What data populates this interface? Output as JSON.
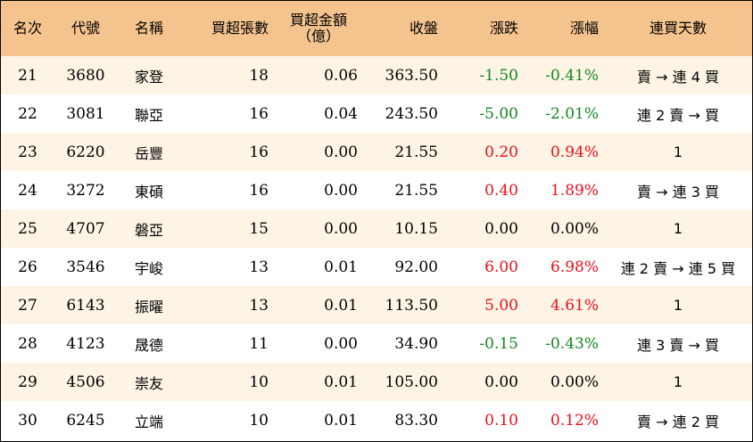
{
  "headers": {
    "rank": "名次",
    "code": "代號",
    "name": "名稱",
    "lots": "買超張數",
    "amount_line1": "買超金額",
    "amount_line2": "（億）",
    "close": "收盤",
    "change": "漲跌",
    "pct": "漲幅",
    "streak": "連買天數"
  },
  "colors": {
    "header_bg": "#f5c48e",
    "stripe_bg": "#fdf4e6",
    "up": "#e8101c",
    "down": "#13861f"
  },
  "rows": [
    {
      "rank": "21",
      "code": "3680",
      "name": "家登",
      "lots": "18",
      "amount": "0.06",
      "close": "363.50",
      "change": "-1.50",
      "pct": "-0.41%",
      "dir": "neg",
      "streak": "賣 → 連 4 買"
    },
    {
      "rank": "22",
      "code": "3081",
      "name": "聯亞",
      "lots": "16",
      "amount": "0.04",
      "close": "243.50",
      "change": "-5.00",
      "pct": "-2.01%",
      "dir": "neg",
      "streak": "連 2 賣 → 買"
    },
    {
      "rank": "23",
      "code": "6220",
      "name": "岳豐",
      "lots": "16",
      "amount": "0.00",
      "close": "21.55",
      "change": "0.20",
      "pct": "0.94%",
      "dir": "pos",
      "streak": "1"
    },
    {
      "rank": "24",
      "code": "3272",
      "name": "東碩",
      "lots": "16",
      "amount": "0.00",
      "close": "21.55",
      "change": "0.40",
      "pct": "1.89%",
      "dir": "pos",
      "streak": "賣 → 連 3 買"
    },
    {
      "rank": "25",
      "code": "4707",
      "name": "磐亞",
      "lots": "15",
      "amount": "0.00",
      "close": "10.15",
      "change": "0.00",
      "pct": "0.00%",
      "dir": "flat",
      "streak": "1"
    },
    {
      "rank": "26",
      "code": "3546",
      "name": "宇峻",
      "lots": "13",
      "amount": "0.01",
      "close": "92.00",
      "change": "6.00",
      "pct": "6.98%",
      "dir": "pos",
      "streak": "連 2 賣 → 連 5 買"
    },
    {
      "rank": "27",
      "code": "6143",
      "name": "振曜",
      "lots": "13",
      "amount": "0.01",
      "close": "113.50",
      "change": "5.00",
      "pct": "4.61%",
      "dir": "pos",
      "streak": "1"
    },
    {
      "rank": "28",
      "code": "4123",
      "name": "晟德",
      "lots": "11",
      "amount": "0.00",
      "close": "34.90",
      "change": "-0.15",
      "pct": "-0.43%",
      "dir": "neg",
      "streak": "連 3 賣 → 買"
    },
    {
      "rank": "29",
      "code": "4506",
      "name": "崇友",
      "lots": "10",
      "amount": "0.01",
      "close": "105.00",
      "change": "0.00",
      "pct": "0.00%",
      "dir": "flat",
      "streak": "1"
    },
    {
      "rank": "30",
      "code": "6245",
      "name": "立端",
      "lots": "10",
      "amount": "0.01",
      "close": "83.30",
      "change": "0.10",
      "pct": "0.12%",
      "dir": "pos",
      "streak": "賣 → 連 2 買"
    }
  ]
}
